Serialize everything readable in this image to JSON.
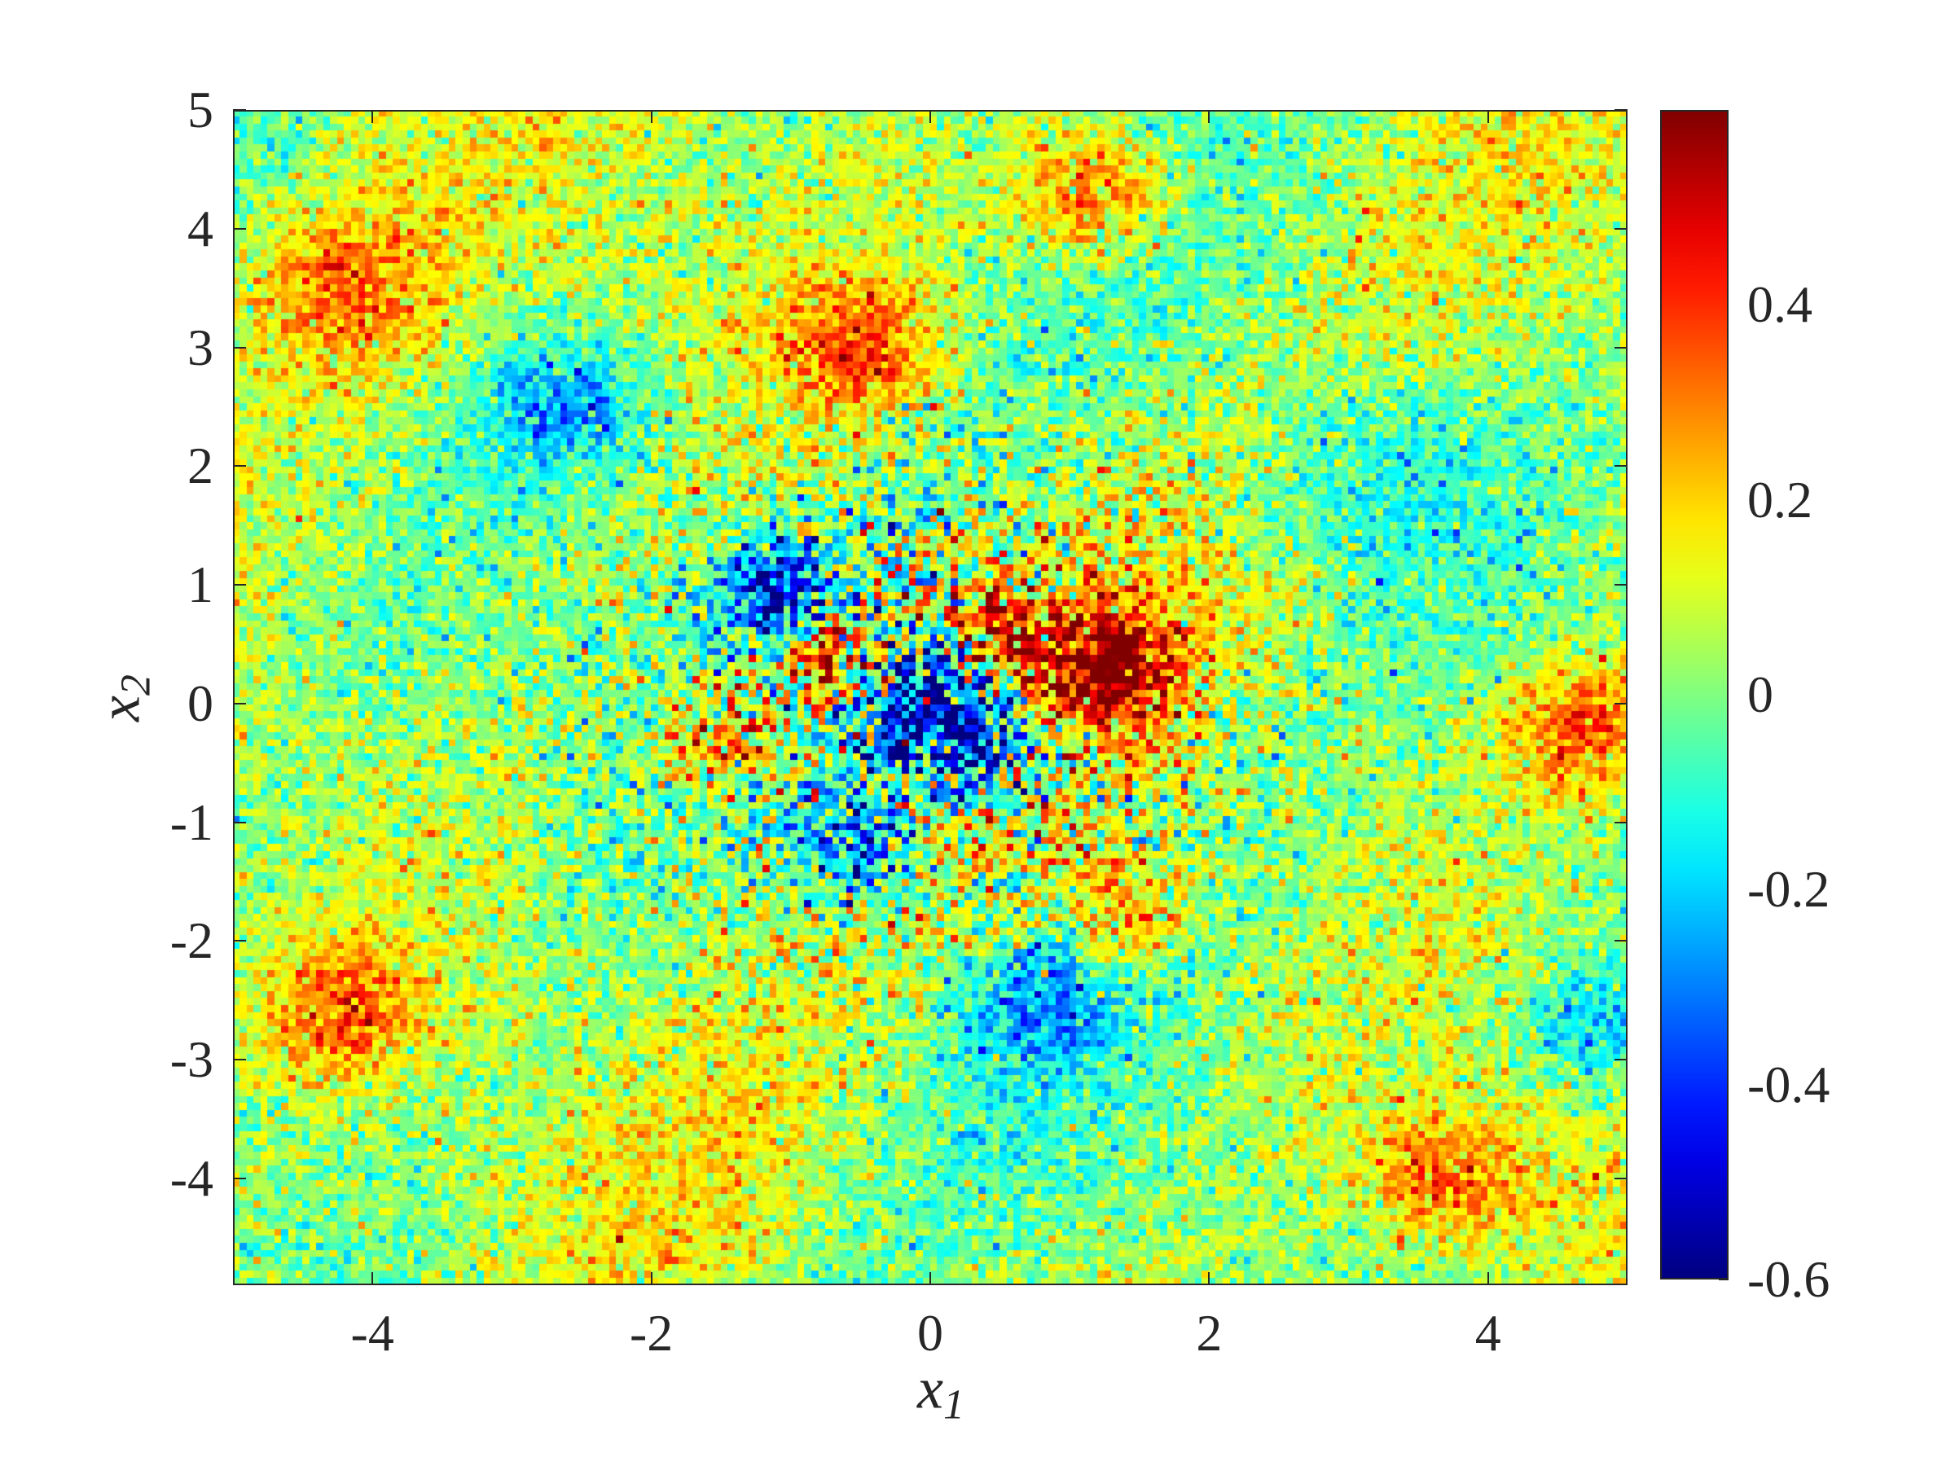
{
  "chart_data": {
    "type": "heatmap",
    "title": "",
    "xlabel": "x",
    "xlabel_sub": "1",
    "ylabel": "x",
    "ylabel_sub": "2",
    "xlim": [
      -5,
      5
    ],
    "ylim": [
      -4.9,
      5
    ],
    "x_ticks": [
      -4,
      -2,
      0,
      2,
      4
    ],
    "x_tick_labels": [
      "-4",
      "-2",
      "0",
      "2",
      "4"
    ],
    "y_ticks": [
      5,
      4,
      3,
      2,
      1,
      0,
      -1,
      -2,
      -3,
      -4
    ],
    "y_tick_labels": [
      "5",
      "4",
      "3",
      "2",
      "1",
      "0",
      "-1",
      "-2",
      "-3",
      "-4"
    ],
    "colormap": "jet",
    "clim": [
      -0.6,
      0.6
    ],
    "colorbar_ticks": [
      0.4,
      0.2,
      0,
      -0.2,
      -0.4,
      -0.6
    ],
    "colorbar_tick_labels": [
      "0.4",
      "0.2",
      "0",
      "-0.2",
      "-0.4",
      "-0.6"
    ],
    "grid": false,
    "field_features": [
      {
        "x": 0.0,
        "y": 0.0,
        "value": -0.55,
        "spread": 0.35
      },
      {
        "x": -1.1,
        "y": 0.95,
        "value": -0.45,
        "spread": 0.3
      },
      {
        "x": -0.5,
        "y": -1.2,
        "value": -0.4,
        "spread": 0.3
      },
      {
        "x": 0.4,
        "y": -0.4,
        "value": -0.45,
        "spread": 0.3
      },
      {
        "x": -0.7,
        "y": 0.35,
        "value": 0.5,
        "spread": 0.25
      },
      {
        "x": 1.3,
        "y": 0.3,
        "value": 0.5,
        "spread": 0.35
      },
      {
        "x": 0.5,
        "y": 0.6,
        "value": 0.45,
        "spread": 0.25
      },
      {
        "x": -1.5,
        "y": -0.3,
        "value": 0.35,
        "spread": 0.3
      },
      {
        "x": 1.2,
        "y": 4.3,
        "value": 0.35,
        "spread": 0.4
      },
      {
        "x": -0.5,
        "y": 3.0,
        "value": 0.3,
        "spread": 0.4
      },
      {
        "x": -2.6,
        "y": 2.5,
        "value": -0.3,
        "spread": 0.4
      },
      {
        "x": 4.7,
        "y": -0.2,
        "value": 0.35,
        "spread": 0.4
      },
      {
        "x": 3.7,
        "y": -4.0,
        "value": 0.3,
        "spread": 0.4
      },
      {
        "x": -4.2,
        "y": -2.6,
        "value": 0.3,
        "spread": 0.4
      },
      {
        "x": 1.4,
        "y": -1.8,
        "value": 0.3,
        "spread": 0.35
      },
      {
        "x": 0.8,
        "y": -2.5,
        "value": -0.25,
        "spread": 0.4
      },
      {
        "x": 4.8,
        "y": -2.7,
        "value": -0.25,
        "spread": 0.35
      },
      {
        "x": -4.2,
        "y": 3.5,
        "value": 0.25,
        "spread": 0.5
      },
      {
        "x": 3.0,
        "y": 2.0,
        "value": -0.15,
        "spread": 0.6
      }
    ]
  }
}
